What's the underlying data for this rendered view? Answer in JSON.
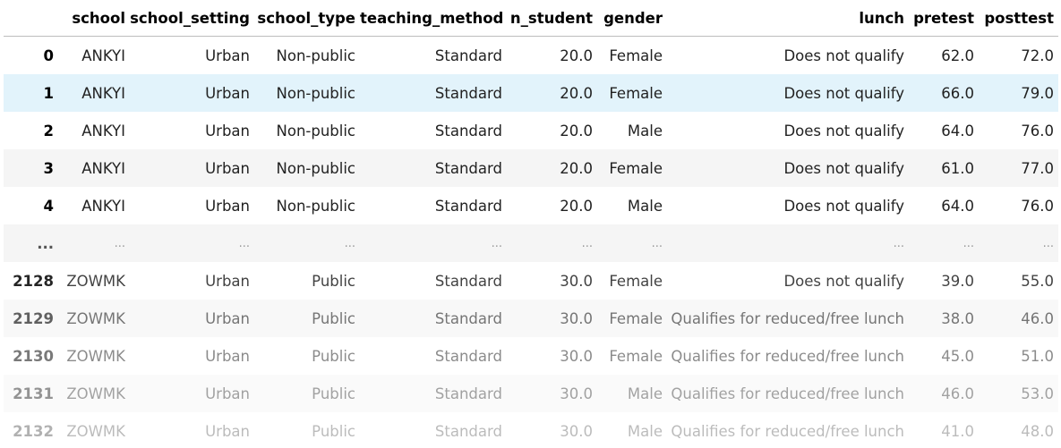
{
  "table": {
    "columns": [
      "",
      "school",
      "school_setting",
      "school_type",
      "teaching_method",
      "n_student",
      "gender",
      "lunch",
      "pretest",
      "posttest"
    ],
    "rows": [
      {
        "index": "0",
        "cells": [
          "ANKYI",
          "Urban",
          "Non-public",
          "Standard",
          "20.0",
          "Female",
          "Does not qualify",
          "62.0",
          "72.0"
        ]
      },
      {
        "index": "1",
        "cells": [
          "ANKYI",
          "Urban",
          "Non-public",
          "Standard",
          "20.0",
          "Female",
          "Does not qualify",
          "66.0",
          "79.0"
        ]
      },
      {
        "index": "2",
        "cells": [
          "ANKYI",
          "Urban",
          "Non-public",
          "Standard",
          "20.0",
          "Male",
          "Does not qualify",
          "64.0",
          "76.0"
        ]
      },
      {
        "index": "3",
        "cells": [
          "ANKYI",
          "Urban",
          "Non-public",
          "Standard",
          "20.0",
          "Female",
          "Does not qualify",
          "61.0",
          "77.0"
        ]
      },
      {
        "index": "4",
        "cells": [
          "ANKYI",
          "Urban",
          "Non-public",
          "Standard",
          "20.0",
          "Male",
          "Does not qualify",
          "64.0",
          "76.0"
        ]
      },
      {
        "index": "...",
        "cells": [
          "...",
          "...",
          "...",
          "...",
          "...",
          "...",
          "...",
          "...",
          "..."
        ]
      },
      {
        "index": "2128",
        "cells": [
          "ZOWMK",
          "Urban",
          "Public",
          "Standard",
          "30.0",
          "Female",
          "Does not qualify",
          "39.0",
          "55.0"
        ]
      },
      {
        "index": "2129",
        "cells": [
          "ZOWMK",
          "Urban",
          "Public",
          "Standard",
          "30.0",
          "Female",
          "Qualifies for reduced/free lunch",
          "38.0",
          "46.0"
        ]
      },
      {
        "index": "2130",
        "cells": [
          "ZOWMK",
          "Urban",
          "Public",
          "Standard",
          "30.0",
          "Female",
          "Qualifies for reduced/free lunch",
          "45.0",
          "51.0"
        ]
      },
      {
        "index": "2131",
        "cells": [
          "ZOWMK",
          "Urban",
          "Public",
          "Standard",
          "30.0",
          "Male",
          "Qualifies for reduced/free lunch",
          "46.0",
          "53.0"
        ]
      },
      {
        "index": "2132",
        "cells": [
          "ZOWMK",
          "Urban",
          "Public",
          "Standard",
          "30.0",
          "Male",
          "Qualifies for reduced/free lunch",
          "41.0",
          "48.0"
        ]
      }
    ]
  },
  "colors": {
    "header_text": "#000000",
    "cell_text": "#222222",
    "stripe": "#f5f5f5",
    "hover": "#e2f3fb",
    "header_border": "#bdbdbd"
  }
}
